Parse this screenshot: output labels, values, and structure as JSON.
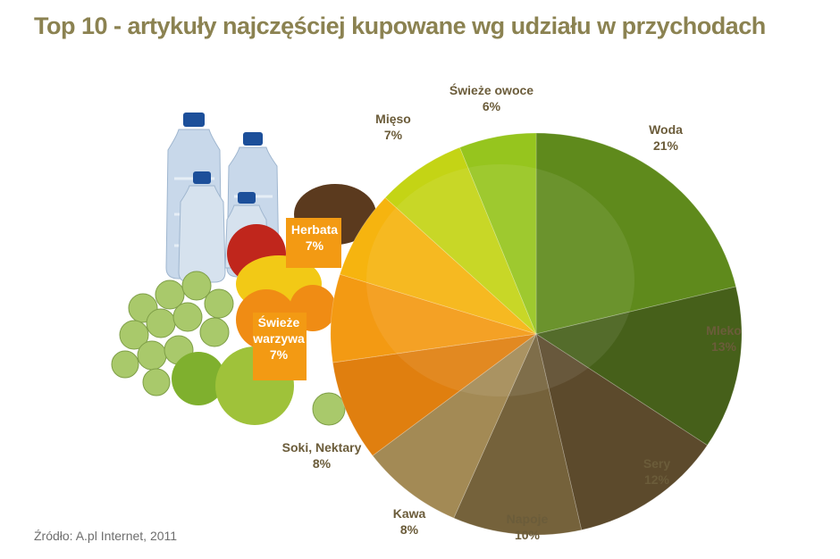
{
  "title": "Top 10 - artykuły najczęściej kupowane wg udziału w przychodach",
  "source": "Źródło: A.pl Internet, 2011",
  "chart_data": {
    "type": "pie",
    "title": "Top 10 - artykuły najczęściej kupowane wg udziału w przychodach",
    "unit": "%",
    "slices": [
      {
        "label": "Woda",
        "value": 21,
        "value_label": "21%",
        "color": "#5f8a1c"
      },
      {
        "label": "Mleko",
        "value": 13,
        "value_label": "13%",
        "color": "#46601a"
      },
      {
        "label": "Sery",
        "value": 12,
        "value_label": "12%",
        "color": "#5c4a2c"
      },
      {
        "label": "Napoje",
        "value": 10,
        "value_label": "10%",
        "color": "#75623b"
      },
      {
        "label": "Kawa",
        "value": 8,
        "value_label": "8%",
        "color": "#a38a55"
      },
      {
        "label": "Soki, Nektary",
        "value": 8,
        "value_label": "8%",
        "color": "#e07f0f"
      },
      {
        "label": "Świeże warzywa",
        "value": 7,
        "value_label": "7%",
        "color": "#f39a13"
      },
      {
        "label": "Herbata",
        "value": 7,
        "value_label": "7%",
        "color": "#f6b40f"
      },
      {
        "label": "Mięso",
        "value": 7,
        "value_label": "7%",
        "color": "#c4d415"
      },
      {
        "label": "Świeże owoce",
        "value": 6,
        "value_label": "6%",
        "color": "#96c51e"
      }
    ],
    "label_lines": {
      "Soki, Nektary": [
        "Soki, Nektary",
        "8%"
      ],
      "Świeże warzywa": [
        "Świeże",
        "warzywa",
        "7%"
      ],
      "Herbata": [
        "Herbata",
        "7%"
      ]
    },
    "boxed_labels": [
      "Herbata",
      "Świeże warzywa"
    ],
    "box_color": "#f39a13",
    "legend": "none"
  },
  "illustration": {
    "bottle_color": "#c8d8ea",
    "cap_color": "#1c4f9a",
    "apple_red": "#c0261c",
    "grape_green": "#a9c96b",
    "orange": "#f08c14",
    "lemon": "#f2c916",
    "coconut": "#5b3a1e"
  }
}
